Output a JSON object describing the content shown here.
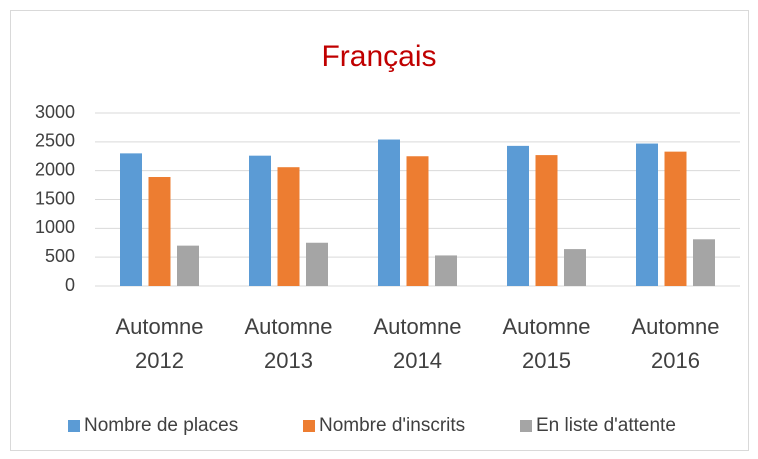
{
  "chart_data": {
    "type": "bar",
    "title": "Français",
    "categories": [
      "Automne 2012",
      "Automne 2013",
      "Automne 2014",
      "Automne 2015",
      "Automne 2016"
    ],
    "series": [
      {
        "name": "Nombre de places",
        "color": "#5b9bd5",
        "values": [
          2300,
          2260,
          2540,
          2430,
          2470
        ]
      },
      {
        "name": "Nombre d'inscrits",
        "color": "#ed7d31",
        "values": [
          1890,
          2060,
          2250,
          2270,
          2330
        ]
      },
      {
        "name": "En liste d'attente",
        "color": "#a5a5a5",
        "values": [
          700,
          750,
          530,
          640,
          810
        ]
      }
    ],
    "ylim": [
      0,
      3000
    ],
    "yticks": [
      0,
      500,
      1000,
      1500,
      2000,
      2500,
      3000
    ],
    "grid": true,
    "legend": "bottom"
  }
}
